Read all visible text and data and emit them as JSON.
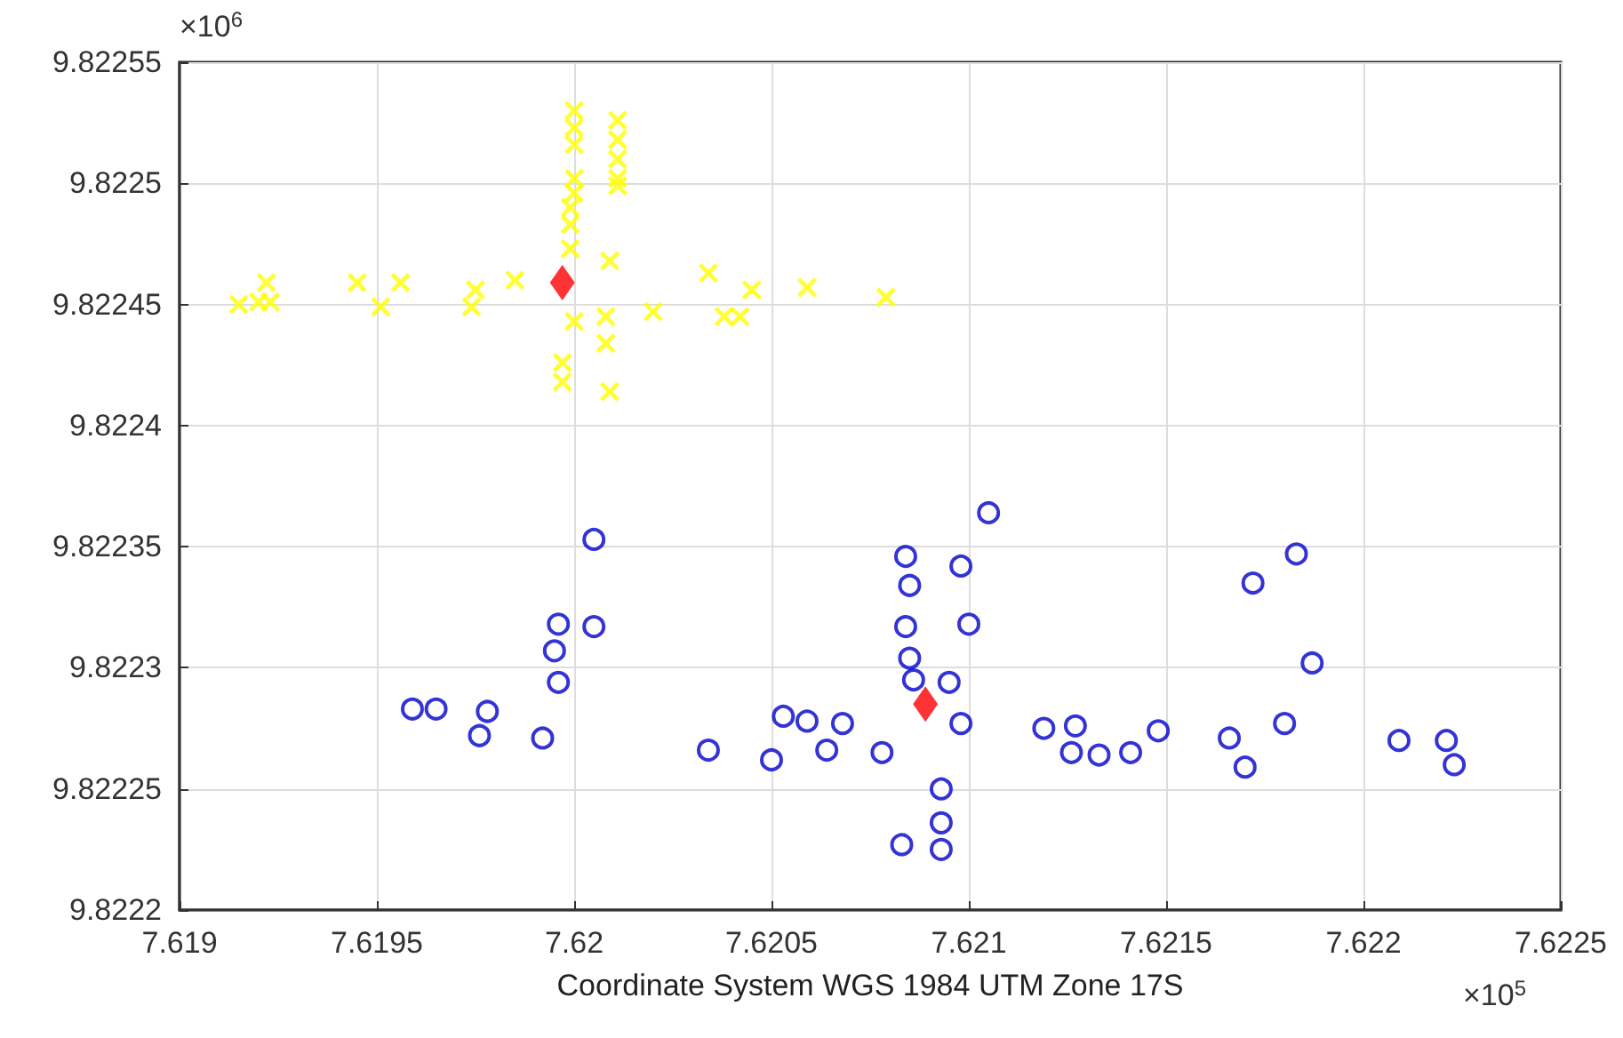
{
  "chart_data": {
    "type": "scatter",
    "xlabel": "Coordinate System WGS 1984 UTM Zone 17S",
    "annotations": [
      "×10$^{6}$",
      "×10$^{5}$"
    ],
    "xlim": [
      7.619,
      7.6225
    ],
    "ylim": [
      9.8222,
      9.82255
    ],
    "xticks": [
      7.619,
      7.6195,
      7.62,
      7.6205,
      7.621,
      7.6215,
      7.622,
      7.6225
    ],
    "yticks": [
      9.8222,
      9.82225,
      9.8223,
      9.82235,
      9.8224,
      9.82245,
      9.8225,
      9.82255
    ],
    "grid": true,
    "series": [
      {
        "color": "#ffff00",
        "marker": "cross",
        "x": [
          7.61915,
          7.6192,
          7.61922,
          7.61923,
          7.61945,
          7.61951,
          7.61956,
          7.61974,
          7.61975,
          7.61985,
          7.62,
          7.62,
          7.62,
          7.62,
          7.62,
          7.61999,
          7.61999,
          7.61999,
          7.62,
          7.61997,
          7.61997,
          7.62011,
          7.62011,
          7.62011,
          7.62011,
          7.62011,
          7.62009,
          7.62008,
          7.62008,
          7.62009,
          7.6202,
          7.62034,
          7.62038,
          7.62042,
          7.62045,
          7.62059,
          7.62079
        ],
        "values": [
          9.82245,
          9.822451,
          9.822459,
          9.822451,
          9.822459,
          9.822449,
          9.822459,
          9.822449,
          9.822456,
          9.82246,
          9.82253,
          9.822523,
          9.822516,
          9.822502,
          9.822496,
          9.82249,
          9.822483,
          9.822473,
          9.822443,
          9.822426,
          9.822418,
          9.822526,
          9.822518,
          9.82251,
          9.822502,
          9.822499,
          9.822468,
          9.822445,
          9.822434,
          9.822414,
          9.822447,
          9.822463,
          9.822445,
          9.822445,
          9.822456,
          9.822457,
          9.822453
        ]
      },
      {
        "color": "#0000cc",
        "marker": "circle",
        "x": [
          7.62005,
          7.61996,
          7.62005,
          7.61995,
          7.61996,
          7.61959,
          7.61965,
          7.61978,
          7.61976,
          7.61992,
          7.62034,
          7.6205,
          7.62053,
          7.62059,
          7.62064,
          7.62068,
          7.62078,
          7.62084,
          7.62085,
          7.62084,
          7.62085,
          7.62086,
          7.62095,
          7.62098,
          7.621,
          7.62105,
          7.62098,
          7.62093,
          7.62093,
          7.62093,
          7.62083,
          7.62119,
          7.62127,
          7.62126,
          7.62133,
          7.62141,
          7.62148,
          7.62166,
          7.6217,
          7.6218,
          7.62172,
          7.62183,
          7.62187,
          7.62209,
          7.62221,
          7.62223
        ],
        "values": [
          9.822353,
          9.822318,
          9.822317,
          9.822307,
          9.822294,
          9.822283,
          9.822283,
          9.822282,
          9.822272,
          9.822271,
          9.822266,
          9.822262,
          9.82228,
          9.822278,
          9.822266,
          9.822277,
          9.822265,
          9.822346,
          9.822334,
          9.822317,
          9.822304,
          9.822295,
          9.822294,
          9.822342,
          9.822318,
          9.822364,
          9.822277,
          9.82225,
          9.822236,
          9.822225,
          9.822227,
          9.822275,
          9.822276,
          9.822265,
          9.822264,
          9.822265,
          9.822274,
          9.822271,
          9.822259,
          9.822277,
          9.822335,
          9.822347,
          9.822302,
          9.82227,
          9.82227,
          9.82226
        ]
      },
      {
        "color": "#ff0000",
        "marker": "diamond",
        "x": [
          7.61997,
          7.62089
        ],
        "values": [
          9.822459,
          9.822285
        ]
      }
    ]
  }
}
